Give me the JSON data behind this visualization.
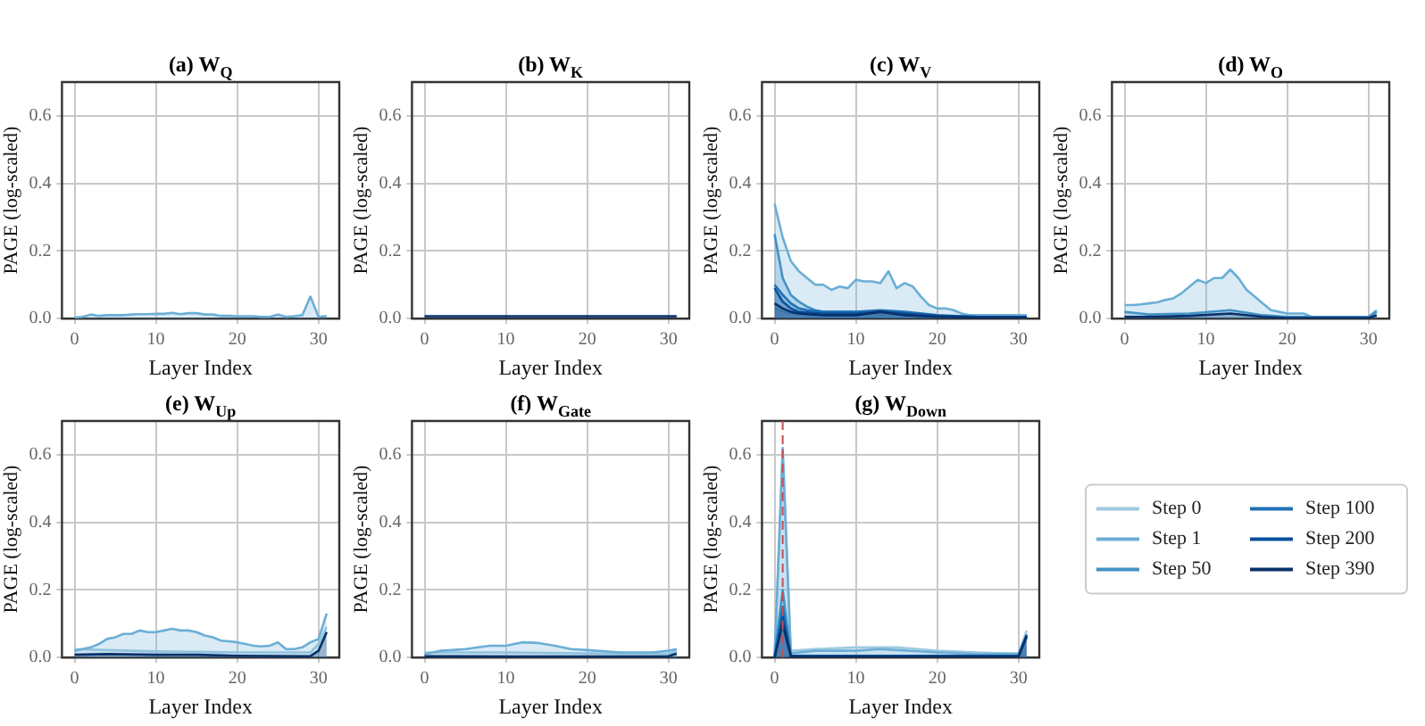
{
  "chart_data": [
    {
      "type": "area",
      "title": "(a) W$_{Q}$",
      "xlabel": "Layer Index",
      "ylabel": "PAGE (log-scaled)",
      "xlim": [
        -1.55,
        32.55
      ],
      "xticks": [
        0,
        10,
        20,
        30
      ],
      "ylim": [
        0,
        0.7
      ],
      "yticks": [
        {
          "value": 0,
          "label": "0.0"
        },
        {
          "value": 0.2,
          "label": "0.2"
        },
        {
          "value": 0.4,
          "label": "0.4"
        },
        {
          "value": 0.6,
          "label": "0.6"
        }
      ],
      "grid": true,
      "series": [
        {
          "color": "#6baed6",
          "x": [
            0,
            1,
            2,
            3,
            4,
            5,
            6,
            7,
            8,
            9,
            10,
            11,
            12,
            13,
            14,
            15,
            16,
            17,
            18,
            19,
            20,
            21,
            22,
            23,
            24,
            25,
            26,
            27,
            28,
            29,
            30,
            31
          ],
          "values": [
            0.003,
            0.005,
            0.012,
            0.008,
            0.01,
            0.01,
            0.01,
            0.012,
            0.013,
            0.013,
            0.014,
            0.014,
            0.017,
            0.013,
            0.016,
            0.016,
            0.012,
            0.012,
            0.008,
            0.008,
            0.007,
            0.007,
            0.007,
            0.005,
            0.005,
            0.012,
            0.005,
            0.007,
            0.01,
            0.065,
            0.005,
            0.008
          ]
        }
      ]
    },
    {
      "type": "area",
      "title": "(b) W$_{K}$",
      "xlabel": "Layer Index",
      "ylabel": "PAGE (log-scaled)",
      "xlim": [
        -1.55,
        32.55
      ],
      "xticks": [
        0,
        10,
        20,
        30
      ],
      "ylim": [
        0,
        0.7
      ],
      "yticks": [
        {
          "value": 0,
          "label": "0.0"
        },
        {
          "value": 0.2,
          "label": "0.2"
        },
        {
          "value": 0.4,
          "label": "0.4"
        },
        {
          "value": 0.6,
          "label": "0.6"
        }
      ],
      "grid": true,
      "series": [
        {
          "color": "#08306b",
          "x": [
            0,
            10,
            20,
            31
          ],
          "values": [
            0.007,
            0.007,
            0.007,
            0.007
          ]
        }
      ]
    },
    {
      "type": "area",
      "title": "(c) W$_{V}$",
      "xlabel": "Layer Index",
      "ylabel": "PAGE (log-scaled)",
      "xlim": [
        -1.55,
        32.55
      ],
      "xticks": [
        0,
        10,
        20,
        30
      ],
      "ylim": [
        0,
        0.7
      ],
      "yticks": [
        {
          "value": 0,
          "label": "0.0"
        },
        {
          "value": 0.2,
          "label": "0.2"
        },
        {
          "value": 0.4,
          "label": "0.4"
        },
        {
          "value": 0.6,
          "label": "0.6"
        }
      ],
      "grid": true,
      "series": [
        {
          "color": "#9ecae1",
          "x": [
            0,
            1,
            2,
            4,
            10,
            13,
            20,
            31
          ],
          "values": [
            0.03,
            0.02,
            0.015,
            0.01,
            0.01,
            0.012,
            0.005,
            0.003
          ]
        },
        {
          "color": "#6baed6",
          "x": [
            0,
            1,
            2,
            3,
            4,
            5,
            6,
            7,
            8,
            9,
            10,
            11,
            12,
            13,
            14,
            15,
            16,
            17,
            18,
            19,
            20,
            21,
            22,
            23,
            24,
            25,
            26,
            27,
            28,
            29,
            30,
            31
          ],
          "values": [
            0.34,
            0.24,
            0.17,
            0.14,
            0.12,
            0.1,
            0.1,
            0.085,
            0.095,
            0.09,
            0.115,
            0.11,
            0.11,
            0.105,
            0.14,
            0.09,
            0.105,
            0.095,
            0.065,
            0.04,
            0.03,
            0.03,
            0.025,
            0.015,
            0.01,
            0.01,
            0.01,
            0.01,
            0.01,
            0.01,
            0.01,
            0.01
          ]
        },
        {
          "color": "#4292c6",
          "x": [
            0,
            1,
            2,
            3,
            4,
            5,
            6,
            10,
            15,
            18,
            20,
            25,
            31
          ],
          "values": [
            0.25,
            0.12,
            0.07,
            0.05,
            0.035,
            0.025,
            0.02,
            0.02,
            0.02,
            0.012,
            0.008,
            0.005,
            0.005
          ]
        },
        {
          "color": "#2171b5",
          "x": [
            0,
            1,
            2,
            3,
            4,
            6,
            10,
            13,
            16,
            20,
            25,
            31
          ],
          "values": [
            0.1,
            0.07,
            0.045,
            0.03,
            0.025,
            0.02,
            0.02,
            0.025,
            0.02,
            0.01,
            0.005,
            0.005
          ]
        },
        {
          "color": "#08519c",
          "x": [
            0,
            1,
            2,
            3,
            6,
            10,
            13,
            16,
            20,
            25,
            31
          ],
          "values": [
            0.09,
            0.05,
            0.03,
            0.02,
            0.015,
            0.015,
            0.02,
            0.015,
            0.008,
            0.005,
            0.005
          ]
        },
        {
          "color": "#08306b",
          "x": [
            0,
            1,
            2,
            3,
            6,
            10,
            13,
            16,
            20,
            25,
            31
          ],
          "values": [
            0.045,
            0.03,
            0.02,
            0.015,
            0.01,
            0.01,
            0.02,
            0.01,
            0.005,
            0.003,
            0.003
          ]
        }
      ]
    },
    {
      "type": "area",
      "title": "(d) W$_{O}$",
      "xlabel": "Layer Index",
      "ylabel": "PAGE (log-scaled)",
      "xlim": [
        -1.55,
        32.55
      ],
      "xticks": [
        0,
        10,
        20,
        30
      ],
      "ylim": [
        0,
        0.7
      ],
      "yticks": [
        {
          "value": 0,
          "label": "0.0"
        },
        {
          "value": 0.2,
          "label": "0.2"
        },
        {
          "value": 0.4,
          "label": "0.4"
        },
        {
          "value": 0.6,
          "label": "0.6"
        }
      ],
      "grid": true,
      "series": [
        {
          "color": "#6baed6",
          "x": [
            0,
            1,
            2,
            3,
            4,
            5,
            6,
            7,
            8,
            9,
            10,
            11,
            12,
            13,
            14,
            15,
            16,
            17,
            18,
            19,
            20,
            21,
            22,
            23,
            24,
            25,
            26,
            27,
            28,
            29,
            30,
            31
          ],
          "values": [
            0.04,
            0.04,
            0.042,
            0.045,
            0.048,
            0.055,
            0.06,
            0.075,
            0.095,
            0.115,
            0.105,
            0.12,
            0.12,
            0.145,
            0.12,
            0.085,
            0.065,
            0.045,
            0.025,
            0.02,
            0.015,
            0.015,
            0.015,
            0.005,
            0.005,
            0.005,
            0.005,
            0.005,
            0.005,
            0.005,
            0.005,
            0.025
          ]
        },
        {
          "color": "#4292c6",
          "x": [
            0,
            3,
            8,
            13,
            17,
            20,
            30,
            31
          ],
          "values": [
            0.02,
            0.012,
            0.015,
            0.025,
            0.01,
            0.005,
            0.005,
            0.02
          ]
        },
        {
          "color": "#08306b",
          "x": [
            0,
            3,
            8,
            13,
            17,
            20,
            30,
            31
          ],
          "values": [
            0.005,
            0.005,
            0.008,
            0.015,
            0.005,
            0.002,
            0.002,
            0.01
          ]
        }
      ]
    },
    {
      "type": "area",
      "title": "(e) W$_{Up}$",
      "xlabel": "Layer Index",
      "ylabel": "PAGE (log-scaled)",
      "xlim": [
        -1.55,
        32.55
      ],
      "xticks": [
        0,
        10,
        20,
        30
      ],
      "ylim": [
        0,
        0.7
      ],
      "yticks": [
        {
          "value": 0,
          "label": "0.0"
        },
        {
          "value": 0.2,
          "label": "0.2"
        },
        {
          "value": 0.4,
          "label": "0.4"
        },
        {
          "value": 0.6,
          "label": "0.6"
        }
      ],
      "grid": true,
      "series": [
        {
          "color": "#9ecae1",
          "x": [
            0,
            4,
            10,
            20,
            29,
            30,
            31
          ],
          "values": [
            0.025,
            0.022,
            0.018,
            0.015,
            0.015,
            0.04,
            0.09
          ]
        },
        {
          "color": "#6baed6",
          "x": [
            0,
            1,
            2,
            3,
            4,
            5,
            6,
            7,
            8,
            9,
            10,
            11,
            12,
            13,
            14,
            15,
            16,
            17,
            18,
            19,
            20,
            21,
            22,
            23,
            24,
            25,
            26,
            27,
            28,
            29,
            30,
            31
          ],
          "values": [
            0.02,
            0.025,
            0.03,
            0.04,
            0.055,
            0.06,
            0.07,
            0.07,
            0.08,
            0.075,
            0.075,
            0.08,
            0.085,
            0.08,
            0.08,
            0.075,
            0.065,
            0.06,
            0.05,
            0.048,
            0.045,
            0.04,
            0.035,
            0.033,
            0.035,
            0.045,
            0.025,
            0.025,
            0.03,
            0.045,
            0.055,
            0.13
          ]
        },
        {
          "color": "#08306b",
          "x": [
            0,
            4,
            10,
            15,
            20,
            29,
            30,
            31
          ],
          "values": [
            0.008,
            0.01,
            0.008,
            0.008,
            0.005,
            0.004,
            0.02,
            0.075
          ]
        }
      ]
    },
    {
      "type": "area",
      "title": "(f) W$_{Gate}$",
      "xlabel": "Layer Index",
      "ylabel": "PAGE (log-scaled)",
      "xlim": [
        -1.55,
        32.55
      ],
      "xticks": [
        0,
        10,
        20,
        30
      ],
      "ylim": [
        0,
        0.7
      ],
      "yticks": [
        {
          "value": 0,
          "label": "0.0"
        },
        {
          "value": 0.2,
          "label": "0.2"
        },
        {
          "value": 0.4,
          "label": "0.4"
        },
        {
          "value": 0.6,
          "label": "0.6"
        }
      ],
      "grid": true,
      "series": [
        {
          "color": "#9ecae1",
          "x": [
            0,
            10,
            20,
            30,
            31
          ],
          "values": [
            0.015,
            0.015,
            0.012,
            0.01,
            0.02
          ]
        },
        {
          "color": "#6baed6",
          "x": [
            0,
            2,
            5,
            8,
            10,
            12,
            14,
            16,
            18,
            20,
            24,
            28,
            30,
            31
          ],
          "values": [
            0.01,
            0.02,
            0.025,
            0.035,
            0.035,
            0.045,
            0.043,
            0.035,
            0.025,
            0.022,
            0.015,
            0.015,
            0.02,
            0.025
          ]
        },
        {
          "color": "#08306b",
          "x": [
            0,
            2,
            10,
            20,
            30,
            31
          ],
          "values": [
            0.004,
            0.004,
            0.003,
            0.003,
            0.004,
            0.012
          ]
        }
      ]
    },
    {
      "type": "area",
      "title": "(g) W$_{Down}$",
      "xlabel": "Layer Index",
      "ylabel": "PAGE (log-scaled)",
      "xlim": [
        -1.55,
        32.55
      ],
      "xticks": [
        0,
        10,
        20,
        30
      ],
      "ylim": [
        0,
        0.7
      ],
      "yticks": [
        {
          "value": 0,
          "label": "0.0"
        },
        {
          "value": 0.2,
          "label": "0.2"
        },
        {
          "value": 0.4,
          "label": "0.4"
        },
        {
          "value": 0.6,
          "label": "0.6"
        }
      ],
      "grid": true,
      "legend": "right",
      "ref_lines": [
        {
          "axis": "x",
          "value": 1,
          "color": "#c44e52",
          "line_style": "dashed"
        }
      ],
      "series": [
        {
          "name": "Step 0",
          "color": "#9ecae1",
          "x": [
            0,
            1,
            2,
            5,
            10,
            15,
            20,
            25,
            30,
            31
          ],
          "values": [
            0,
            0.6,
            0.02,
            0.025,
            0.03,
            0.03,
            0.02,
            0.015,
            0.01,
            0.08
          ]
        },
        {
          "name": "Step 1",
          "color": "#6baed6",
          "x": [
            0,
            1,
            2,
            5,
            10,
            13,
            20,
            25,
            30,
            31
          ],
          "values": [
            0,
            0.62,
            0.012,
            0.02,
            0.02,
            0.025,
            0.015,
            0.01,
            0.012,
            0.07
          ]
        },
        {
          "name": "Step 50",
          "color": "#4292c6",
          "x": [
            0,
            1,
            2,
            10,
            20,
            30,
            31
          ],
          "values": [
            0,
            0.2,
            0.005,
            0.005,
            0.005,
            0.005,
            0.06
          ]
        },
        {
          "name": "Step 100",
          "color": "#2171b5",
          "x": [
            0,
            1,
            2,
            10,
            20,
            30,
            31
          ],
          "values": [
            0,
            0.15,
            0.005,
            0.005,
            0.005,
            0.005,
            0.06
          ]
        },
        {
          "name": "Step 200",
          "color": "#08519c",
          "x": [
            0,
            1,
            2,
            10,
            20,
            30,
            31
          ],
          "values": [
            0,
            0.12,
            0.004,
            0.004,
            0.004,
            0.004,
            0.065
          ]
        },
        {
          "name": "Step 390",
          "color": "#08306b",
          "x": [
            0,
            1,
            2,
            10,
            20,
            30,
            31
          ],
          "values": [
            0,
            0.1,
            0.003,
            0.003,
            0.003,
            0.003,
            0.065
          ]
        }
      ]
    }
  ]
}
